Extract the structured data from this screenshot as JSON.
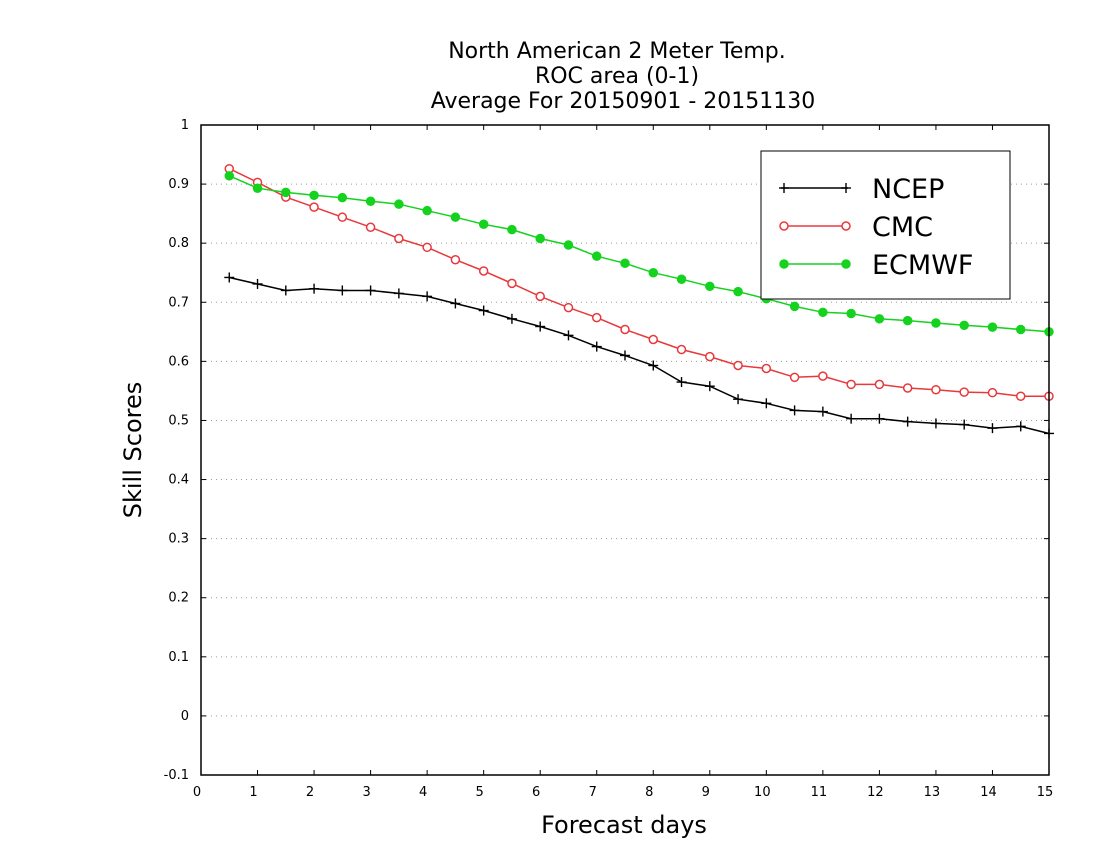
{
  "chart_data": {
    "type": "line",
    "title": [
      "North American 2 Meter Temp.",
      "ROC area (0-1)",
      "Average For 20150901 - 20151130"
    ],
    "xlabel": "Forecast days",
    "ylabel": "Skill Scores",
    "xlim": [
      0,
      15
    ],
    "ylim": [
      -0.1,
      1
    ],
    "x_ticks": [
      0,
      1,
      2,
      3,
      4,
      5,
      6,
      7,
      8,
      9,
      10,
      11,
      12,
      13,
      14,
      15
    ],
    "y_ticks": [
      -0.1,
      0,
      0.1,
      0.2,
      0.3,
      0.4,
      0.5,
      0.6,
      0.7,
      0.8,
      0.9,
      1
    ],
    "y_tick_labels": [
      "-0.1",
      "0",
      "0.1",
      "0.2",
      "0.3",
      "0.4",
      "0.5",
      "0.6",
      "0.7",
      "0.8",
      "0.9",
      "1"
    ],
    "grid": "horizontal dotted",
    "legend_position": "top-right",
    "x": [
      0.5,
      1,
      1.5,
      2,
      2.5,
      3,
      3.5,
      4,
      4.5,
      5,
      5.5,
      6,
      6.5,
      7,
      7.5,
      8,
      8.5,
      9,
      9.5,
      10,
      10.5,
      11,
      11.5,
      12,
      12.5,
      13,
      13.5,
      14,
      14.5,
      15
    ],
    "series": [
      {
        "name": "NCEP",
        "color": "#000000",
        "marker": "plus",
        "values": [
          0.742,
          0.731,
          0.72,
          0.723,
          0.72,
          0.72,
          0.715,
          0.71,
          0.698,
          0.686,
          0.672,
          0.659,
          0.644,
          0.625,
          0.61,
          0.593,
          0.565,
          0.558,
          0.536,
          0.529,
          0.517,
          0.515,
          0.503,
          0.503,
          0.498,
          0.495,
          0.493,
          0.487,
          0.49,
          0.478
        ]
      },
      {
        "name": "CMC",
        "color": "#e8383c",
        "marker": "open-circle",
        "values": [
          0.926,
          0.903,
          0.878,
          0.861,
          0.844,
          0.827,
          0.808,
          0.793,
          0.772,
          0.753,
          0.732,
          0.71,
          0.691,
          0.674,
          0.654,
          0.637,
          0.62,
          0.608,
          0.593,
          0.588,
          0.573,
          0.575,
          0.561,
          0.561,
          0.555,
          0.552,
          0.548,
          0.547,
          0.541,
          0.541
        ]
      },
      {
        "name": "ECMWF",
        "color": "#14d21e",
        "marker": "filled-circle",
        "values": [
          0.914,
          0.893,
          0.886,
          0.881,
          0.877,
          0.871,
          0.866,
          0.855,
          0.844,
          0.832,
          0.823,
          0.808,
          0.797,
          0.778,
          0.766,
          0.75,
          0.739,
          0.727,
          0.718,
          0.706,
          0.693,
          0.683,
          0.681,
          0.672,
          0.669,
          0.665,
          0.661,
          0.658,
          0.654,
          0.65
        ]
      }
    ]
  }
}
